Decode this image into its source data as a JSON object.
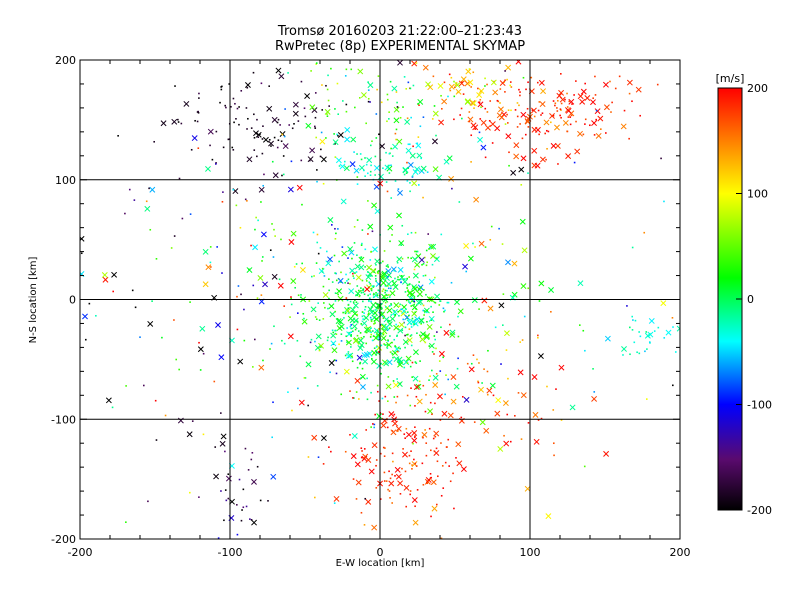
{
  "chart_data": {
    "type": "scatter",
    "title": "Tromsø 20160203 21:22:00–21:23:43",
    "subtitle": "RwPretec (8p) EXPERIMENTAL SKYMAP",
    "xlabel": "E-W location [km]",
    "ylabel": "N-S location [km]",
    "xlim": [
      -200,
      200
    ],
    "ylim": [
      -200,
      200
    ],
    "x_ticks": [
      "-200",
      "-100",
      "0",
      "100",
      "200"
    ],
    "y_ticks": [
      "-200",
      "-100",
      "0",
      "100",
      "200"
    ],
    "grid": true,
    "colorbar": {
      "label": "[m/s]",
      "range": [
        -200,
        200
      ],
      "ticks": [
        "200",
        "100",
        "0",
        "-100",
        "-200"
      ],
      "colormap": [
        "#000000",
        "#5a0a6e",
        "#0000ff",
        "#00ffff",
        "#00ff00",
        "#ffff00",
        "#ff0000"
      ]
    },
    "marker_types": [
      "cross",
      "dot"
    ],
    "clusters": [
      {
        "x": 0,
        "y": -10,
        "sx": 25,
        "sy": 30,
        "n": 650,
        "v": 5,
        "vs": 35
      },
      {
        "x": 15,
        "y": -130,
        "sx": 22,
        "sy": 30,
        "n": 170,
        "v": 185,
        "vs": 20
      },
      {
        "x": 115,
        "y": 155,
        "sx": 28,
        "sy": 18,
        "n": 160,
        "v": 185,
        "vs": 20
      },
      {
        "x": 65,
        "y": 175,
        "sx": 25,
        "sy": 15,
        "n": 80,
        "v": 140,
        "vs": 40
      },
      {
        "x": -75,
        "y": 150,
        "sx": 35,
        "sy": 22,
        "n": 120,
        "v": -190,
        "vs": 15
      },
      {
        "x": 5,
        "y": 110,
        "sx": 15,
        "sy": 10,
        "n": 70,
        "v": -30,
        "vs": 20
      },
      {
        "x": -5,
        "y": 160,
        "sx": 30,
        "sy": 25,
        "n": 90,
        "v": 20,
        "vs": 60
      },
      {
        "x": -100,
        "y": -150,
        "sx": 12,
        "sy": 25,
        "n": 40,
        "v": -180,
        "vs": 40
      },
      {
        "x": -150,
        "y": 0,
        "sx": 40,
        "sy": 60,
        "n": 50,
        "v": -60,
        "vs": 150
      },
      {
        "x": -70,
        "y": 30,
        "sx": 40,
        "sy": 60,
        "n": 90,
        "v": 20,
        "vs": 120
      },
      {
        "x": 80,
        "y": -80,
        "sx": 30,
        "sy": 25,
        "n": 60,
        "v": 170,
        "vs": 40
      },
      {
        "x": 175,
        "y": -30,
        "sx": 15,
        "sy": 10,
        "n": 30,
        "v": -30,
        "vs": 10
      },
      {
        "x": 40,
        "y": 20,
        "sx": 60,
        "sy": 90,
        "n": 100,
        "v": 50,
        "vs": 100
      },
      {
        "x": 0,
        "y": 0,
        "sx": 120,
        "sy": 120,
        "n": 120,
        "v": 0,
        "vs": 140
      }
    ]
  }
}
